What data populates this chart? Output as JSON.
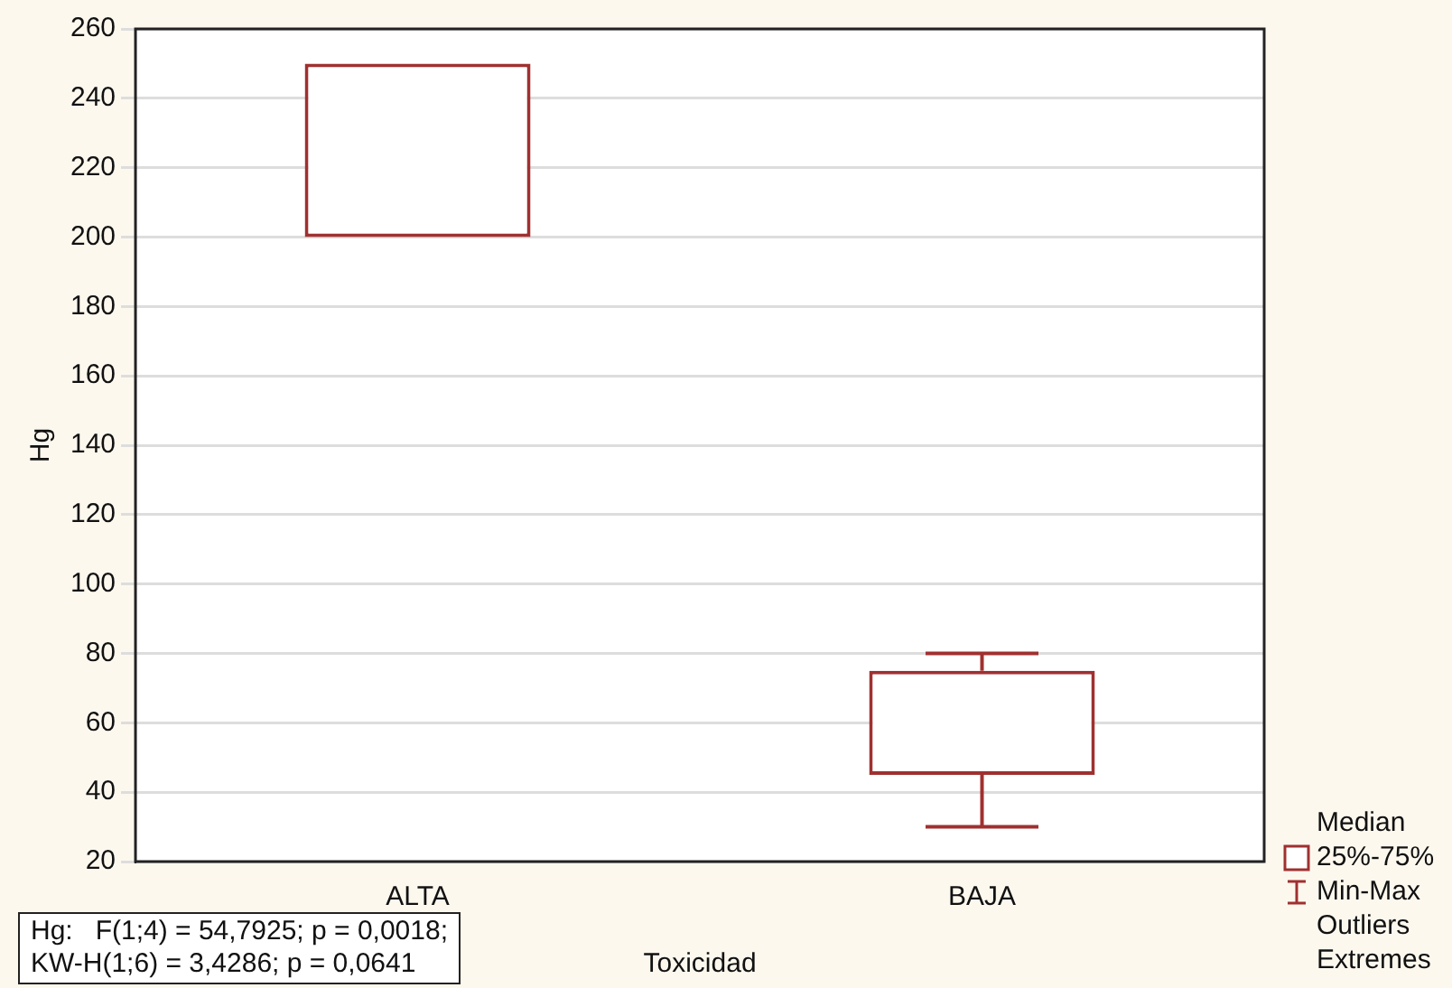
{
  "chart_data": {
    "type": "box",
    "xlabel": "Toxicidad",
    "ylabel": "Hg",
    "categories": [
      "ALTA",
      "BAJA"
    ],
    "boxes": [
      {
        "low": 200,
        "q1": 200,
        "median": null,
        "q3": 250,
        "high": 250
      },
      {
        "low": 30,
        "q1": 45,
        "median": null,
        "q3": 75,
        "high": 80
      }
    ],
    "color": "#a03030",
    "ylim": [
      20,
      260
    ],
    "yticks": [
      20,
      40,
      60,
      80,
      100,
      120,
      140,
      160,
      180,
      200,
      220,
      240,
      260
    ],
    "grid": "y",
    "annotations": [
      "Hg:   F(1;4) = 54,7925; p = 0,0018;\nKW-H(1;6) = 3,4286; p = 0,0641",
      "Median",
      "25%-75%",
      "Min-Max",
      "Outliers",
      "Extremes"
    ]
  }
}
